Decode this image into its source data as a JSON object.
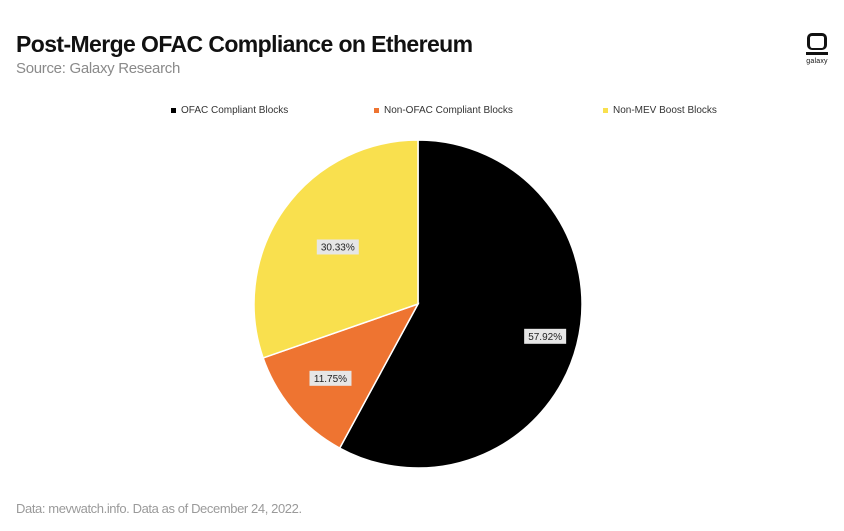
{
  "header": {
    "title": "Post-Merge OFAC Compliance on Ethereum",
    "subtitle": "Source: Galaxy Research"
  },
  "logo": {
    "text": "galaxy",
    "icon": "galaxy-logo-icon"
  },
  "footnote": "Data: mevwatch.info. Data as of December 24, 2022.",
  "chart_data": {
    "type": "pie",
    "title": "",
    "legend_position": "top",
    "slices": [
      {
        "name": "OFAC Compliant Blocks",
        "value": 57.92,
        "label": "57.92%",
        "color": "#000000"
      },
      {
        "name": "Non-OFAC Compliant Blocks",
        "value": 11.75,
        "label": "11.75%",
        "color": "#EE7431"
      },
      {
        "name": "Non-MEV Boost Blocks",
        "value": 30.33,
        "label": "30.33%",
        "color": "#F9E04E"
      }
    ]
  }
}
